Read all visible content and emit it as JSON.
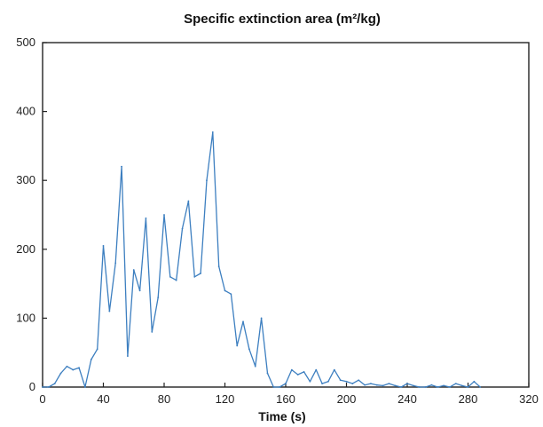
{
  "chart_data": {
    "type": "line",
    "title": "Specific extinction area (m²/kg)",
    "xlabel": "Time (s)",
    "ylabel": "",
    "xlim": [
      0,
      320
    ],
    "ylim": [
      0,
      500
    ],
    "xticks": [
      0,
      40,
      80,
      120,
      160,
      200,
      240,
      280,
      320
    ],
    "yticks": [
      0,
      100,
      200,
      300,
      400,
      500
    ],
    "xtick_labels": [
      "0",
      "40",
      "80",
      "120",
      "160",
      "200",
      "240",
      "280",
      "320"
    ],
    "ytick_labels": [
      "0",
      "100",
      "200",
      "300",
      "400",
      "500"
    ],
    "grid": false,
    "series": [
      {
        "color": "#3d7fc0",
        "x": [
          0,
          4,
          8,
          12,
          16,
          20,
          24,
          28,
          32,
          36,
          40,
          44,
          48,
          52,
          56,
          60,
          64,
          68,
          72,
          76,
          80,
          84,
          88,
          92,
          96,
          100,
          104,
          108,
          112,
          116,
          120,
          124,
          128,
          132,
          136,
          140,
          144,
          148,
          152,
          156,
          160,
          164,
          168,
          172,
          176,
          180,
          184,
          188,
          192,
          196,
          200,
          204,
          208,
          212,
          216,
          220,
          224,
          228,
          232,
          236,
          240,
          244,
          248,
          252,
          256,
          260,
          264,
          268,
          272,
          276,
          280,
          284,
          288
        ],
        "y": [
          0,
          0,
          5,
          20,
          30,
          25,
          28,
          0,
          40,
          55,
          205,
          110,
          180,
          320,
          45,
          170,
          140,
          245,
          80,
          130,
          250,
          160,
          155,
          230,
          270,
          160,
          165,
          300,
          370,
          175,
          140,
          135,
          60,
          95,
          55,
          30,
          100,
          20,
          0,
          0,
          5,
          25,
          18,
          22,
          8,
          25,
          5,
          8,
          25,
          10,
          8,
          5,
          10,
          3,
          5,
          3,
          2,
          5,
          2,
          0,
          5,
          2,
          0,
          0,
          3,
          0,
          2,
          0,
          5,
          2,
          0,
          8,
          0
        ]
      }
    ]
  }
}
